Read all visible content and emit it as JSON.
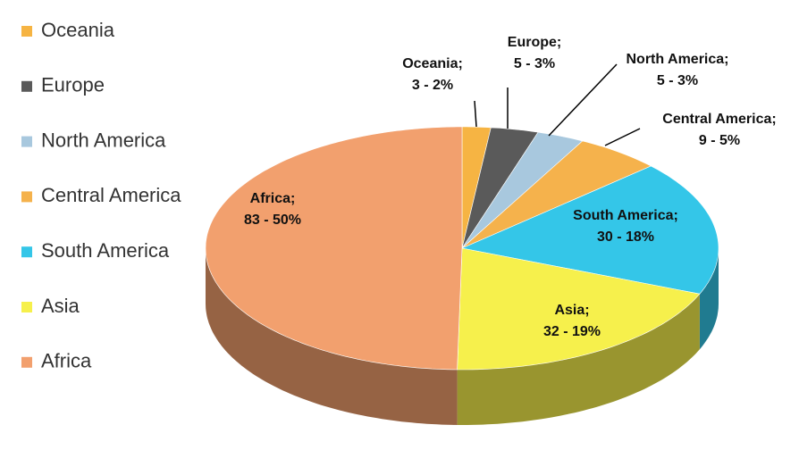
{
  "chart_data": {
    "type": "pie3d",
    "categories": [
      "Oceania",
      "Europe",
      "North America",
      "Central America",
      "South America",
      "Asia",
      "Africa"
    ],
    "values": [
      3,
      5,
      5,
      9,
      30,
      32,
      83
    ],
    "value_labels": [
      [
        "Oceania;",
        "3 - 2%"
      ],
      [
        "Europe;",
        "5 - 3%"
      ],
      [
        "North America;",
        "5 - 3%"
      ],
      [
        "Central America;",
        "9 - 5%"
      ],
      [
        "South America;",
        "30 - 18%"
      ],
      [
        "Asia;",
        "32 - 19%"
      ],
      [
        "Africa;",
        "83 - 50%"
      ]
    ],
    "colors": [
      "#f6b443",
      "#5a5a5a",
      "#a8c8de",
      "#f5b24c",
      "#34c6e8",
      "#f6f04c",
      "#f2a06e"
    ],
    "legend": "left"
  }
}
